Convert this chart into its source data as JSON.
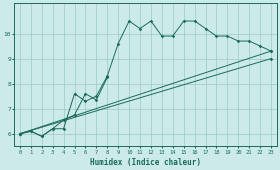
{
  "xlabel": "Humidex (Indice chaleur)",
  "bg_color": "#cceaea",
  "grid_color": "#9dc8c8",
  "line_color": "#1a6b5a",
  "line1_x": [
    0,
    1,
    2,
    3,
    4,
    5,
    6,
    7,
    8,
    9,
    10,
    11,
    12,
    13,
    14,
    15,
    16,
    17,
    18,
    19,
    20,
    21,
    22,
    23
  ],
  "line1_y": [
    6.0,
    6.1,
    5.9,
    6.2,
    6.2,
    7.6,
    7.3,
    7.5,
    8.3,
    9.6,
    10.5,
    10.2,
    10.5,
    9.9,
    9.9,
    10.5,
    10.5,
    10.2,
    9.9,
    9.9,
    9.7,
    9.7,
    9.5,
    9.3
  ],
  "line2_x": [
    0,
    1,
    2,
    3,
    4,
    5,
    6,
    7,
    8
  ],
  "line2_y": [
    6.0,
    6.1,
    5.9,
    6.2,
    6.55,
    6.75,
    7.6,
    7.35,
    8.25
  ],
  "line3_x": [
    0,
    23
  ],
  "line3_y": [
    6.0,
    9.3
  ],
  "line4_x": [
    0,
    23
  ],
  "line4_y": [
    6.0,
    9.0
  ],
  "xlim": [
    -0.5,
    23.5
  ],
  "ylim": [
    5.5,
    11.2
  ],
  "yticks": [
    6,
    7,
    8,
    9,
    10
  ],
  "xticks": [
    0,
    1,
    2,
    3,
    4,
    5,
    6,
    7,
    8,
    9,
    10,
    11,
    12,
    13,
    14,
    15,
    16,
    17,
    18,
    19,
    20,
    21,
    22,
    23
  ]
}
